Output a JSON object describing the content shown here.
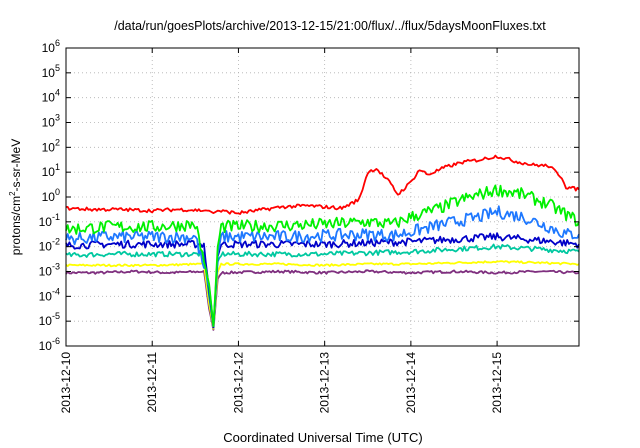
{
  "chart_data": {
    "type": "line",
    "title": "/data/run/goesPlots/archive/2013-12-15/21:00/flux/../flux/5daysMoonFluxes.txt",
    "xlabel": "Coordinated Universal Time (UTC)",
    "ylabel": {
      "base": "protons/cm",
      "sup": "2",
      "rest": "-s-sr-MeV"
    },
    "xlim": [
      0,
      5.95
    ],
    "x_unit": "days since 2013-12-10 00:00 UTC",
    "x_ticks": [
      {
        "x": 0,
        "label": "2013-12-10"
      },
      {
        "x": 1,
        "label": "2013-12-11"
      },
      {
        "x": 2,
        "label": "2013-12-12"
      },
      {
        "x": 3,
        "label": "2013-12-13"
      },
      {
        "x": 4,
        "label": "2013-12-14"
      },
      {
        "x": 5,
        "label": "2013-12-15"
      }
    ],
    "y_scale": "log",
    "ylim_exp": [
      -6,
      6
    ],
    "y_ticks": [
      {
        "exp": -6,
        "label": "10",
        "sup": "-6"
      },
      {
        "exp": -5,
        "label": "10",
        "sup": "-5"
      },
      {
        "exp": -4,
        "label": "10",
        "sup": "-4"
      },
      {
        "exp": -3,
        "label": "10",
        "sup": "-3"
      },
      {
        "exp": -2,
        "label": "10",
        "sup": "-2"
      },
      {
        "exp": -1,
        "label": "10",
        "sup": "-1"
      },
      {
        "exp": 0,
        "label": "10",
        "sup": "0"
      },
      {
        "exp": 1,
        "label": "10",
        "sup": "1"
      },
      {
        "exp": 2,
        "label": "10",
        "sup": "2"
      },
      {
        "exp": 3,
        "label": "10",
        "sup": "3"
      },
      {
        "exp": 4,
        "label": "10",
        "sup": "4"
      },
      {
        "exp": 5,
        "label": "10",
        "sup": "5"
      },
      {
        "exp": 6,
        "label": "10",
        "sup": "6"
      }
    ],
    "grid": true,
    "grid_style": "dotted",
    "series": [
      {
        "color": "#7f2f7f",
        "log10_values": [
          [
            0,
            -3.05
          ],
          [
            0.4,
            -3.05
          ],
          [
            0.8,
            -3.0
          ],
          [
            1.2,
            -3.05
          ],
          [
            1.6,
            -3.0
          ],
          [
            1.66,
            -4.5
          ],
          [
            1.71,
            -5.35
          ],
          [
            1.76,
            -3.3
          ],
          [
            1.8,
            -3.05
          ],
          [
            2.5,
            -3.0
          ],
          [
            3.0,
            -3.05
          ],
          [
            3.5,
            -3.0
          ],
          [
            4.0,
            -3.05
          ],
          [
            4.5,
            -3.0
          ],
          [
            5.0,
            -3.05
          ],
          [
            5.5,
            -3.0
          ],
          [
            5.95,
            -3.05
          ]
        ]
      },
      {
        "color": "#ffff00",
        "log10_values": [
          [
            0,
            -2.75
          ],
          [
            0.5,
            -2.75
          ],
          [
            1.0,
            -2.75
          ],
          [
            1.6,
            -2.7
          ],
          [
            1.66,
            -4.3
          ],
          [
            1.71,
            -5.3
          ],
          [
            1.76,
            -3.0
          ],
          [
            1.8,
            -2.7
          ],
          [
            2.5,
            -2.7
          ],
          [
            3.0,
            -2.75
          ],
          [
            3.5,
            -2.7
          ],
          [
            4.0,
            -2.7
          ],
          [
            4.5,
            -2.65
          ],
          [
            5.0,
            -2.6
          ],
          [
            5.5,
            -2.65
          ],
          [
            5.95,
            -2.7
          ]
        ]
      },
      {
        "color": "#00c8a0",
        "log10_values": [
          [
            0,
            -2.35
          ],
          [
            0.5,
            -2.3
          ],
          [
            1.0,
            -2.3
          ],
          [
            1.6,
            -2.3
          ],
          [
            1.66,
            -4.0
          ],
          [
            1.71,
            -5.25
          ],
          [
            1.76,
            -2.6
          ],
          [
            1.8,
            -2.3
          ],
          [
            2.5,
            -2.3
          ],
          [
            3.0,
            -2.3
          ],
          [
            3.5,
            -2.25
          ],
          [
            4.0,
            -2.2
          ],
          [
            4.5,
            -2.1
          ],
          [
            5.0,
            -2.0
          ],
          [
            5.5,
            -2.1
          ],
          [
            5.95,
            -2.2
          ]
        ]
      },
      {
        "color": "#0000c8",
        "log10_values": [
          [
            0,
            -1.95
          ],
          [
            0.5,
            -1.9
          ],
          [
            1.0,
            -1.9
          ],
          [
            1.6,
            -1.9
          ],
          [
            1.66,
            -3.8
          ],
          [
            1.71,
            -5.25
          ],
          [
            1.76,
            -2.4
          ],
          [
            1.8,
            -1.9
          ],
          [
            2.5,
            -1.9
          ],
          [
            3.0,
            -1.9
          ],
          [
            3.5,
            -1.85
          ],
          [
            4.0,
            -1.8
          ],
          [
            4.5,
            -1.7
          ],
          [
            5.0,
            -1.6
          ],
          [
            5.5,
            -1.75
          ],
          [
            5.95,
            -1.9
          ]
        ]
      },
      {
        "color": "#1e78ff",
        "log10_values": [
          [
            0,
            -1.7
          ],
          [
            0.5,
            -1.6
          ],
          [
            1.0,
            -1.6
          ],
          [
            1.5,
            -1.6
          ],
          [
            1.66,
            -3.6
          ],
          [
            1.71,
            -5.2
          ],
          [
            1.76,
            -2.3
          ],
          [
            1.8,
            -1.6
          ],
          [
            2.5,
            -1.6
          ],
          [
            3.0,
            -1.55
          ],
          [
            3.5,
            -1.5
          ],
          [
            3.8,
            -1.55
          ],
          [
            4.0,
            -1.4
          ],
          [
            4.5,
            -1.0
          ],
          [
            4.8,
            -0.8
          ],
          [
            5.0,
            -0.6
          ],
          [
            5.3,
            -0.8
          ],
          [
            5.6,
            -1.2
          ],
          [
            5.8,
            -1.5
          ],
          [
            5.95,
            -1.5
          ]
        ]
      },
      {
        "color": "#00f000",
        "log10_values": [
          [
            0,
            -1.3
          ],
          [
            0.5,
            -1.2
          ],
          [
            1.0,
            -1.2
          ],
          [
            1.5,
            -1.1
          ],
          [
            1.66,
            -3.5
          ],
          [
            1.71,
            -5.2
          ],
          [
            1.76,
            -2.0
          ],
          [
            1.8,
            -1.2
          ],
          [
            2.5,
            -1.15
          ],
          [
            3.0,
            -1.1
          ],
          [
            3.5,
            -1.0
          ],
          [
            3.8,
            -1.1
          ],
          [
            4.0,
            -0.8
          ],
          [
            4.3,
            -0.5
          ],
          [
            4.6,
            -0.1
          ],
          [
            5.0,
            0.3
          ],
          [
            5.3,
            0.1
          ],
          [
            5.6,
            -0.3
          ],
          [
            5.8,
            -0.7
          ],
          [
            5.95,
            -1.0
          ]
        ]
      },
      {
        "color": "#ff0000",
        "log10_values": [
          [
            0,
            -0.45
          ],
          [
            0.3,
            -0.5
          ],
          [
            0.6,
            -0.5
          ],
          [
            1.0,
            -0.55
          ],
          [
            1.3,
            -0.5
          ],
          [
            1.66,
            -0.55
          ],
          [
            1.71,
            -0.65
          ],
          [
            1.76,
            -0.55
          ],
          [
            2.0,
            -0.65
          ],
          [
            2.3,
            -0.5
          ],
          [
            2.5,
            -0.4
          ],
          [
            2.8,
            -0.35
          ],
          [
            3.0,
            -0.4
          ],
          [
            3.2,
            -0.45
          ],
          [
            3.4,
            -0.1
          ],
          [
            3.5,
            1.0
          ],
          [
            3.6,
            1.15
          ],
          [
            3.75,
            0.6
          ],
          [
            3.85,
            0.1
          ],
          [
            4.0,
            0.6
          ],
          [
            4.1,
            1.1
          ],
          [
            4.2,
            0.9
          ],
          [
            4.4,
            1.2
          ],
          [
            4.6,
            1.4
          ],
          [
            4.8,
            1.5
          ],
          [
            5.0,
            1.65
          ],
          [
            5.2,
            1.45
          ],
          [
            5.4,
            1.3
          ],
          [
            5.6,
            1.25
          ],
          [
            5.75,
            0.8
          ],
          [
            5.8,
            0.4
          ],
          [
            5.95,
            0.3
          ]
        ]
      }
    ]
  }
}
